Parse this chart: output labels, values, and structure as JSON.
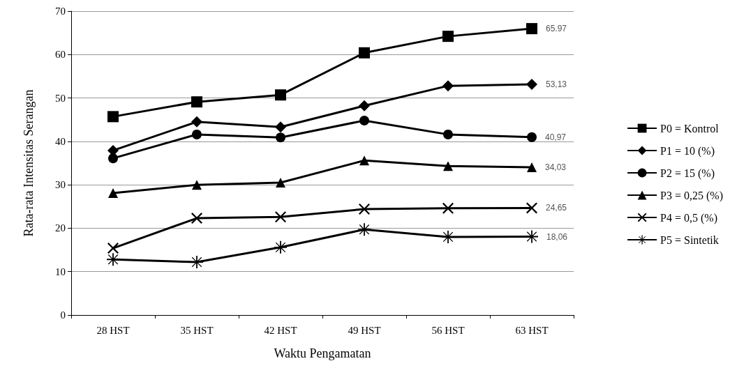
{
  "chart_data": {
    "type": "line",
    "xlabel": "Waktu Pengamatan",
    "ylabel": "Rata-rata Intensitas Serangan",
    "categories": [
      "28 HST",
      "35 HST",
      "42 HST",
      "49 HST",
      "56 HST",
      "63 HST"
    ],
    "ylim": [
      0,
      70
    ],
    "yticks": [
      0,
      10,
      20,
      30,
      40,
      50,
      60,
      70
    ],
    "grid": "y",
    "legend": "right",
    "series": [
      {
        "name": "P0 = Kontrol",
        "color": "#000000",
        "marker": "square",
        "values": [
          45.7,
          49.1,
          50.7,
          60.4,
          64.2,
          65.97
        ],
        "value_labels": [
          null,
          null,
          null,
          null,
          null,
          "65.97"
        ]
      },
      {
        "name": "P1 = 10 (%)",
        "color": "#000000",
        "marker": "diamond",
        "values": [
          37.9,
          44.5,
          43.3,
          48.2,
          52.8,
          53.13
        ],
        "value_labels": [
          null,
          null,
          null,
          null,
          null,
          "53,13"
        ]
      },
      {
        "name": "P2 = 15 (%)",
        "color": "#000000",
        "marker": "circle",
        "values": [
          36.1,
          41.6,
          40.9,
          44.8,
          41.6,
          40.97
        ],
        "value_labels": [
          null,
          null,
          null,
          null,
          null,
          "40,97"
        ]
      },
      {
        "name": "P3 = 0,25 (%)",
        "color": "#000000",
        "marker": "triangle",
        "values": [
          28.1,
          30.0,
          30.5,
          35.6,
          34.3,
          34.03
        ],
        "value_labels": [
          null,
          null,
          null,
          null,
          null,
          "34,03"
        ]
      },
      {
        "name": "P4 = 0,5 (%)",
        "color": "#000000",
        "marker": "cross",
        "values": [
          15.4,
          22.3,
          22.6,
          24.4,
          24.6,
          24.65
        ],
        "value_labels": [
          null,
          null,
          null,
          null,
          null,
          "24,65"
        ]
      },
      {
        "name": "P5 = Sintetik",
        "color": "#000000",
        "marker": "star",
        "values": [
          12.8,
          12.2,
          15.6,
          19.7,
          18.0,
          18.06
        ],
        "value_labels": [
          null,
          null,
          null,
          null,
          null,
          "18,06"
        ]
      }
    ]
  }
}
